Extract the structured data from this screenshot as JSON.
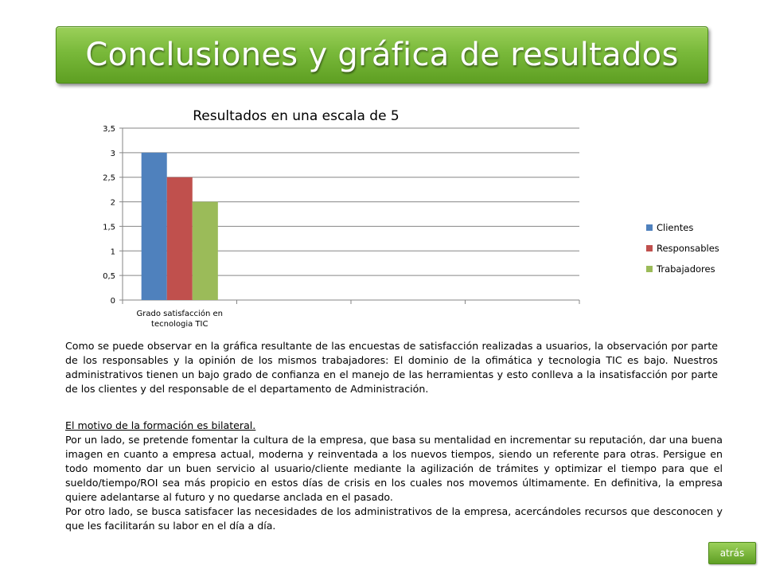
{
  "slide": {
    "title": "Conclusiones y gráfica de resultados",
    "back_label": "atrás",
    "accent_color": "#7ab83c"
  },
  "chart_data": {
    "type": "bar",
    "title": "Resultados en una escala de 5",
    "categories": [
      "Grado satisfacción en tecnologia TIC",
      "",
      "",
      ""
    ],
    "category_label_lines": [
      [
        "Grado satisfacción en",
        "tecnologia TIC"
      ],
      [],
      [],
      []
    ],
    "series": [
      {
        "name": "Clientes",
        "values": [
          3,
          null,
          null,
          null
        ],
        "color": "#4f81bd"
      },
      {
        "name": "Responsables",
        "values": [
          2.5,
          null,
          null,
          null
        ],
        "color": "#c0504d"
      },
      {
        "name": "Trabajadores",
        "values": [
          2,
          null,
          null,
          null
        ],
        "color": "#9bbb59"
      }
    ],
    "ylim": [
      0,
      3.5
    ],
    "yticks": [
      "0",
      "0,5",
      "1",
      "1,5",
      "2",
      "2,5",
      "3",
      "3,5"
    ],
    "grid": true,
    "legend": "right"
  },
  "text": {
    "paragraph1": "Como se puede observar en la gráfica resultante de las encuestas de satisfacción realizadas a usuarios, la observación por parte de los responsables y la opinión de los mismos trabajadores: El dominio de la ofimática y tecnologia TIC es bajo. Nuestros administrativos tienen un bajo grado de confianza en el manejo de las herramientas y esto conlleva a la insatisfacción por parte de los clientes y del responsable de el departamento de Administración.",
    "heading2": "El motivo de la formación es bilateral.",
    "paragraph2a": "Por un lado, se pretende fomentar la cultura de la empresa, que basa su mentalidad en incrementar su reputación, dar una buena imagen en cuanto a empresa actual, moderna y reinventada a los nuevos tiempos, siendo un referente para otras. Persigue en todo momento dar un buen servicio al usuario/cliente mediante la agilización de trámites y optimizar el tiempo para que el sueldo/tiempo/ROI sea más propicio en estos días de crisis en los cuales nos movemos últimamente. En definitiva, la empresa quiere adelantarse al futuro y no quedarse anclada en el pasado.",
    "paragraph2b": "Por otro lado, se busca satisfacer las necesidades de los administrativos de la empresa, acercándoles recursos que desconocen y que les facilitarán su labor en el día a día."
  }
}
